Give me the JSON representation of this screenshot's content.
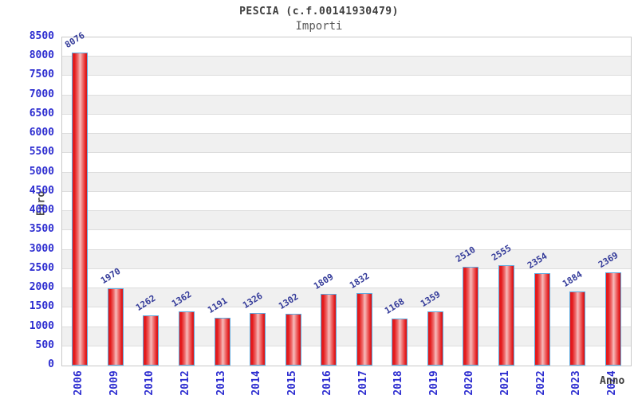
{
  "chart_data": {
    "type": "bar",
    "title": "PESCIA (c.f.00141930479)",
    "subtitle": "Importi",
    "xlabel": "Anno",
    "ylabel": "Euro",
    "categories": [
      "2006",
      "2009",
      "2010",
      "2012",
      "2013",
      "2014",
      "2015",
      "2016",
      "2017",
      "2018",
      "2019",
      "2020",
      "2021",
      "2022",
      "2023",
      "2024"
    ],
    "values": [
      8076,
      1970,
      1262,
      1362,
      1191,
      1326,
      1302,
      1809,
      1832,
      1168,
      1359,
      2510,
      2555,
      2354,
      1884,
      2369
    ],
    "ylim": [
      0,
      8500
    ],
    "ytick_step": 500,
    "grid": true,
    "band_shading": true,
    "legend_position": "none",
    "colors": {
      "bar_edge": "#e31a1c",
      "bar_mid": "#f6bcbc",
      "bar_border": "#5ea9de",
      "tick_label": "#2d2dd0",
      "value_label": "#333a99",
      "band_gray": "#f0f0f0",
      "gridline": "#dddddd",
      "plot_border": "#c9c9c9",
      "title_color": "#3d3d3d"
    }
  }
}
